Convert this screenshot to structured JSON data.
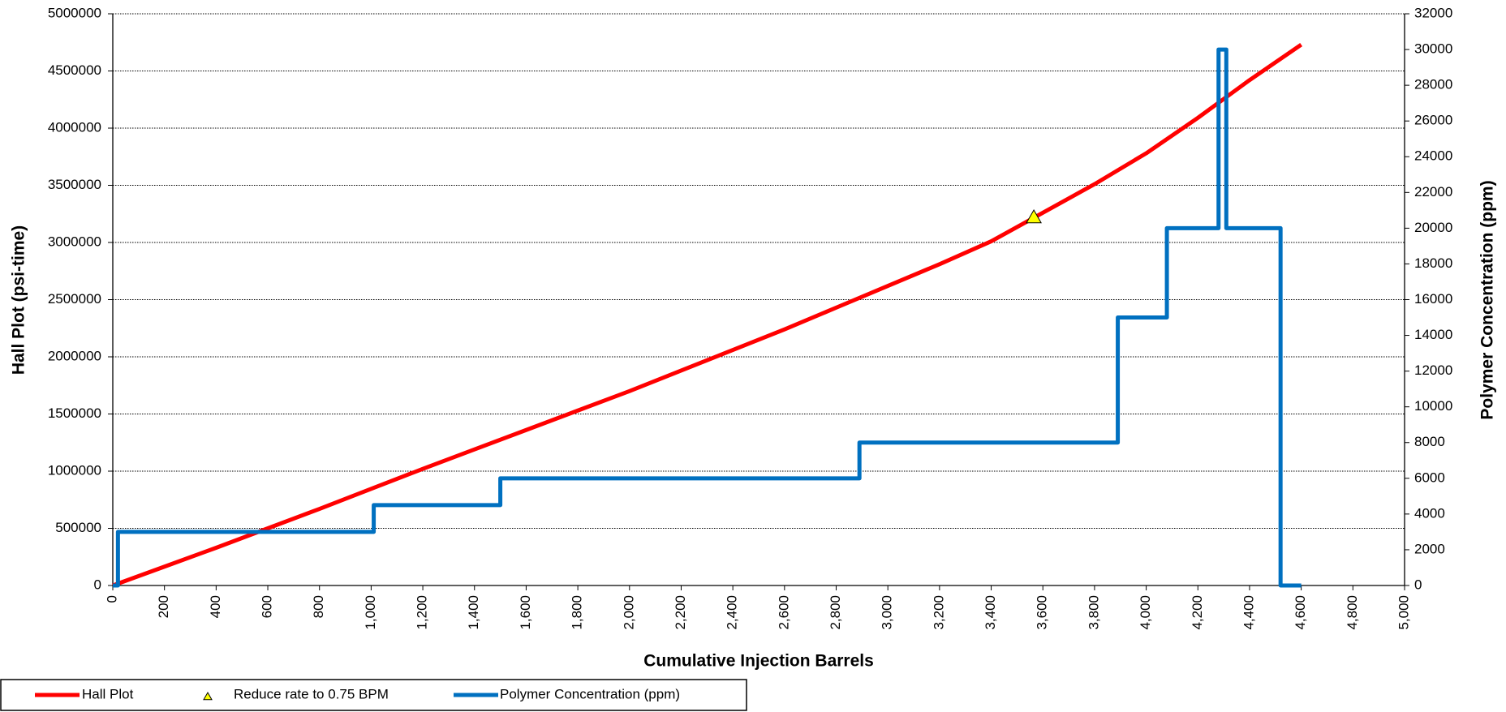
{
  "chart_data": {
    "type": "line",
    "x_label": "Cumulative Injection Barrels",
    "y_label": "Hall Plot (psi-time)",
    "y2_label": "Polymer Concentration (ppm)",
    "xlim": [
      0,
      5000
    ],
    "xticks": [
      0,
      200,
      400,
      600,
      800,
      {
        "value": 1000,
        "label": "1,000"
      },
      {
        "value": 1200,
        "label": "1,200"
      },
      {
        "value": 1400,
        "label": "1,400"
      },
      {
        "value": 1600,
        "label": "1,600"
      },
      {
        "value": 1800,
        "label": "1,800"
      },
      {
        "value": 2000,
        "label": "2,000"
      },
      {
        "value": 2200,
        "label": "2,200"
      },
      {
        "value": 2400,
        "label": "2,400"
      },
      {
        "value": 2600,
        "label": "2,600"
      },
      {
        "value": 2800,
        "label": "2,800"
      },
      {
        "value": 3000,
        "label": "3,000"
      },
      {
        "value": 3200,
        "label": "3,200"
      },
      {
        "value": 3400,
        "label": "3,400"
      },
      {
        "value": 3600,
        "label": "3,600"
      },
      {
        "value": 3800,
        "label": "3,800"
      },
      {
        "value": 4000,
        "label": "4,000"
      },
      {
        "value": 4200,
        "label": "4,200"
      },
      {
        "value": 4400,
        "label": "4,400"
      },
      {
        "value": 4600,
        "label": "4,600"
      },
      {
        "value": 4800,
        "label": "4,800"
      },
      {
        "value": 5000,
        "label": "5,000"
      }
    ],
    "ylim": [
      0,
      5000000
    ],
    "yticks": [
      0,
      500000,
      1000000,
      1500000,
      2000000,
      2500000,
      3000000,
      3500000,
      4000000,
      4500000,
      5000000
    ],
    "y2lim": [
      0,
      32000
    ],
    "y2ticks": [
      0,
      2000,
      4000,
      6000,
      8000,
      10000,
      12000,
      14000,
      16000,
      18000,
      20000,
      22000,
      24000,
      26000,
      28000,
      30000,
      32000
    ],
    "grid": true,
    "legend": "bottom-left",
    "series": [
      {
        "name": "Hall Plot",
        "color": "#ff0000",
        "marker": "none",
        "x": [
          0,
          200,
          400,
          600,
          800,
          1000,
          1200,
          1400,
          1600,
          1800,
          2000,
          2200,
          2400,
          2600,
          2800,
          3000,
          3200,
          3400,
          3600,
          3800,
          4000,
          4200,
          4400,
          4600
        ],
        "values": [
          0,
          165000,
          330000,
          500000,
          670000,
          845000,
          1020000,
          1190000,
          1360000,
          1530000,
          1700000,
          1880000,
          2060000,
          2240000,
          2430000,
          2620000,
          2810000,
          3010000,
          3260000,
          3510000,
          3780000,
          4090000,
          4420000,
          4730000
        ]
      },
      {
        "name": "Reduce rate to 0.75 BPM",
        "color": "#ffff00",
        "marker": "triangle",
        "x": [
          3565
        ],
        "values": [
          3220000
        ]
      },
      {
        "name": "Polymer Concentration (ppm)",
        "color": "#0070c0",
        "marker": "none",
        "axis": "y2",
        "x": [
          0,
          20,
          20,
          1010,
          1010,
          1500,
          1500,
          2890,
          2890,
          3890,
          3890,
          4080,
          4080,
          4280,
          4280,
          4310,
          4310,
          4520,
          4520,
          4600
        ],
        "values": [
          0,
          0,
          3000,
          3000,
          4500,
          4500,
          6000,
          6000,
          8000,
          8000,
          15000,
          15000,
          20000,
          20000,
          30000,
          30000,
          20000,
          20000,
          0,
          0
        ]
      }
    ]
  }
}
